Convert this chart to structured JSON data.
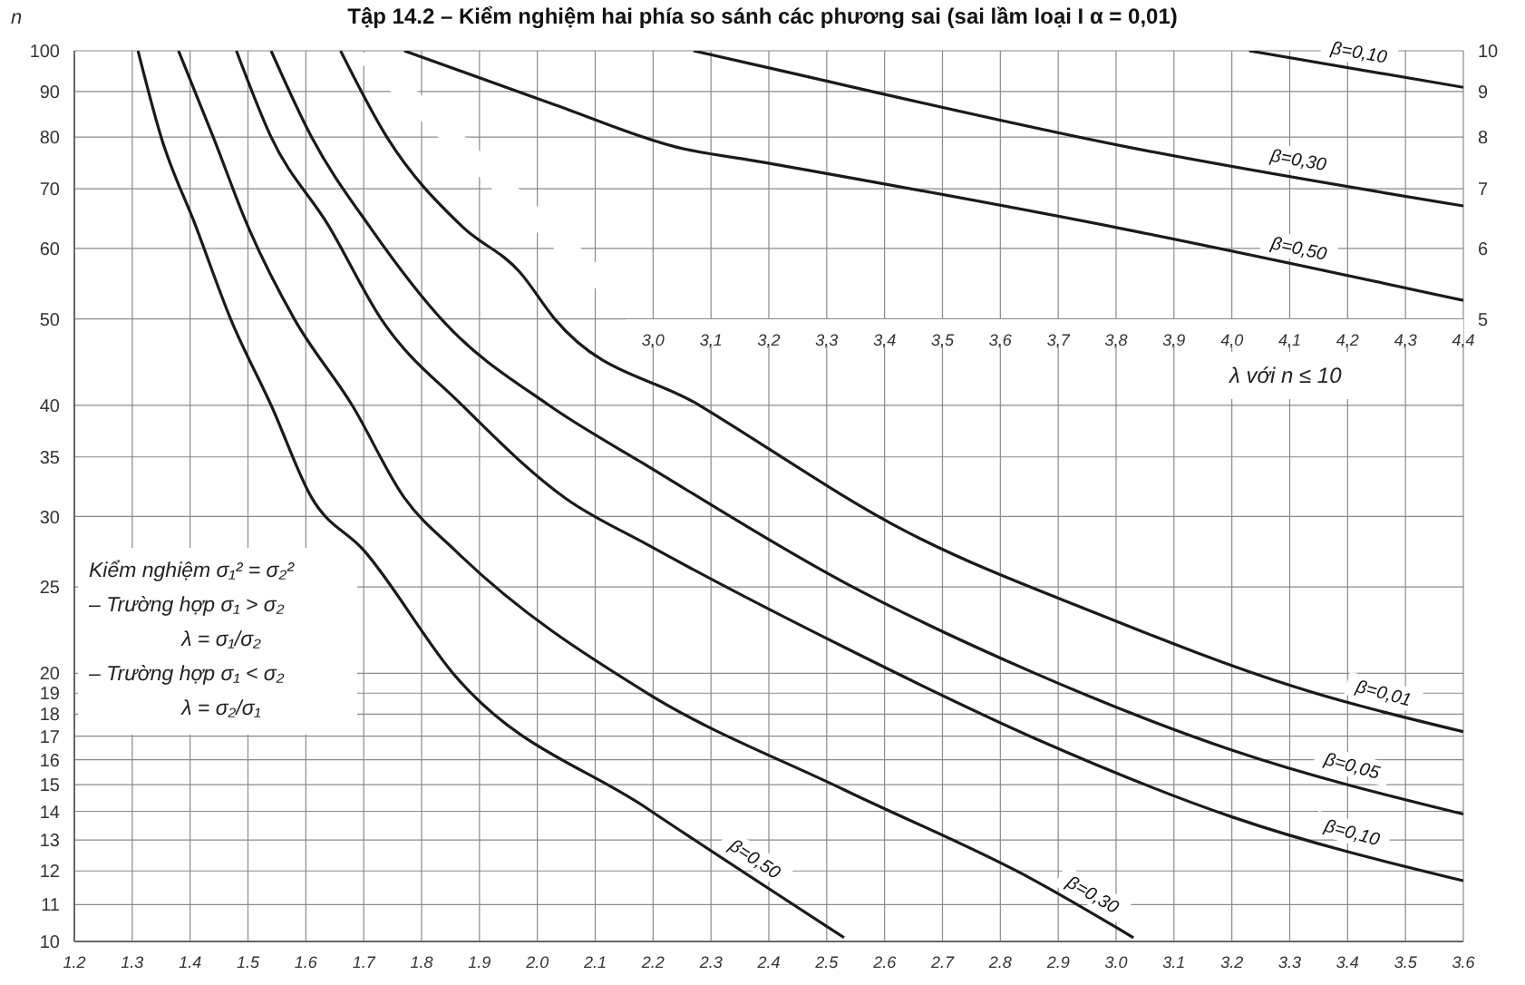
{
  "chart_data": [
    {
      "type": "line",
      "title": "Tập 14.2 – Kiểm nghiệm hai phía so sánh các phương sai (sai lầm loại I α = 0,01)",
      "ylabel": "n",
      "xlim": [
        1.2,
        3.6
      ],
      "xticks": [
        1.2,
        1.3,
        1.4,
        1.5,
        1.6,
        1.7,
        1.8,
        1.9,
        {
          "value": 2,
          "label": "2.0"
        },
        2.1,
        2.2,
        2.3,
        2.4,
        2.5,
        2.6,
        2.7,
        2.8,
        2.9,
        {
          "value": 3,
          "label": "3.0"
        },
        3.1,
        3.2,
        3.3,
        3.4,
        3.5,
        3.6
      ],
      "ylim": [
        10,
        100
      ],
      "yticks": [
        10,
        11,
        12,
        13,
        14,
        15,
        16,
        17,
        18,
        19,
        20,
        25,
        30,
        35,
        40,
        50,
        60,
        70,
        80,
        90,
        100
      ],
      "log": "y",
      "grid": true,
      "marker": "none",
      "line_style": "solid",
      "annotations": [
        "Kiểm nghiệm σ₁² = σ₂²",
        "– Trường hợp σ₁ > σ₂",
        "λ = σ₁/σ₂",
        "– Trường hợp σ₁ < σ₂",
        "λ = σ₂/σ₁"
      ],
      "series": [
        {
          "name": "β=0,50",
          "color": "#1a1a1a",
          "x": [
            1.31,
            1.35,
            1.41,
            1.47,
            1.54,
            1.61,
            1.7,
            1.86,
            2.19,
            2.53
          ],
          "values": [
            100,
            80,
            63.5,
            50,
            40,
            31.5,
            27.5,
            19.8,
            14.1,
            10.1
          ]
        },
        {
          "name": "β=0,30",
          "color": "#1a1a1a",
          "x": [
            1.38,
            1.44,
            1.5,
            1.58,
            1.68,
            1.77,
            1.86,
            2.19,
            2.53,
            2.86,
            3.03
          ],
          "values": [
            100,
            80,
            63.5,
            50,
            40,
            31.5,
            27.4,
            19,
            14.8,
            11.7,
            10.1
          ]
        },
        {
          "name": "β=0,10",
          "color": "#1a1a1a",
          "x": [
            1.48,
            1.54,
            1.64,
            1.73,
            1.87,
            2.05,
            2.19,
            2.53,
            2.86,
            3.2,
            3.6
          ],
          "values": [
            100,
            80,
            63.5,
            50,
            40,
            31.4,
            27.9,
            21.4,
            16.9,
            13.8,
            11.7
          ]
        },
        {
          "name": "β=0,05",
          "color": "#1a1a1a",
          "x": [
            1.54,
            1.61,
            1.71,
            1.84,
            2.02,
            2.19,
            2.53,
            2.86,
            3.2,
            3.6
          ],
          "values": [
            100,
            80,
            63.5,
            49.5,
            40,
            34.2,
            25.3,
            20,
            16.4,
            13.9
          ]
        },
        {
          "name": "β=0,01",
          "color": "#1a1a1a",
          "x": [
            1.66,
            1.74,
            1.87,
            1.97,
            2.03,
            2.28,
            2.64,
            2.97,
            3.31,
            3.6
          ],
          "values": [
            100,
            80,
            63.5,
            56.4,
            50,
            40,
            28.8,
            23.3,
            19.3,
            17.2
          ]
        }
      ]
    },
    {
      "type": "line",
      "xlabel": "λ với n ≤ 10",
      "xlim": [
        2.0,
        4.4
      ],
      "xticks": [
        {
          "value": 3,
          "label": "3,0"
        },
        {
          "value": 3.1,
          "label": "3,1"
        },
        {
          "value": 3.2,
          "label": "3,2"
        },
        {
          "value": 3.3,
          "label": "3,3"
        },
        {
          "value": 3.4,
          "label": "3,4"
        },
        {
          "value": 3.5,
          "label": "3,5"
        },
        {
          "value": 3.6,
          "label": "3,6"
        },
        {
          "value": 3.7,
          "label": "3,7"
        },
        {
          "value": 3.8,
          "label": "3,8"
        },
        {
          "value": 3.9,
          "label": "3,9"
        },
        {
          "value": 4,
          "label": "4,0"
        },
        {
          "value": 4.1,
          "label": "4,1"
        },
        {
          "value": 4.2,
          "label": "4,2"
        },
        {
          "value": 4.3,
          "label": "4,3"
        },
        {
          "value": 4.4,
          "label": "4,4"
        }
      ],
      "ylim": [
        5,
        10
      ],
      "yticks": [
        5,
        6,
        7,
        8,
        9,
        10
      ],
      "log": "y",
      "marker": "none",
      "line_style": "solid",
      "series": [
        {
          "name": "β=0,10",
          "color": "#1a1a1a",
          "x": [
            4.03,
            4.4
          ],
          "values": [
            10,
            9.1
          ]
        },
        {
          "name": "β=0,30",
          "color": "#1a1a1a",
          "x": [
            3.07,
            3.19,
            3.82,
            4.4
          ],
          "values": [
            10,
            9.6,
            7.8,
            6.7
          ]
        },
        {
          "name": "β=0,50",
          "color": "#1a1a1a",
          "x": [
            2.57,
            2.83,
            3.04,
            3.19,
            3.82,
            4.4
          ],
          "values": [
            10,
            8.7,
            7.8,
            7.5,
            6.3,
            5.25
          ]
        }
      ]
    }
  ]
}
